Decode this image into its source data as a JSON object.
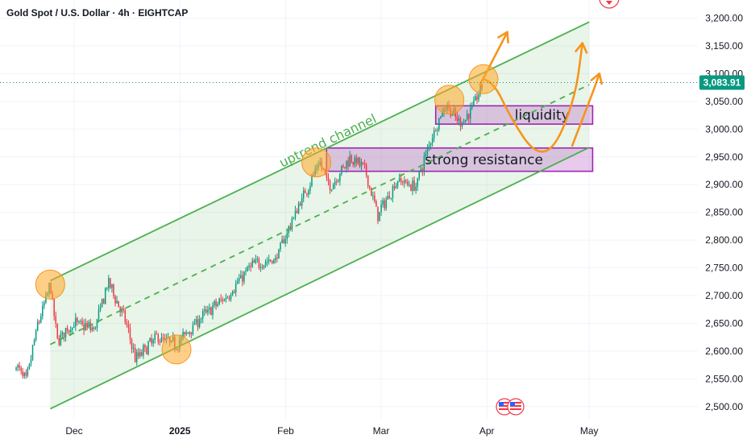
{
  "chart_data": {
    "type": "candlestick",
    "title": "Gold Spot / U.S. Dollar · 4h · EIGHTCAP",
    "ylim": [
      2480,
      3230
    ],
    "y_ticks": [
      "3,200.00",
      "3,150.00",
      "3,100.00",
      "3,050.00",
      "3,000.00",
      "2,950.00",
      "2,900.00",
      "2,850.00",
      "2,800.00",
      "2,750.00",
      "2,700.00",
      "2,650.00",
      "2,600.00",
      "2,550.00",
      "2,500.00"
    ],
    "y_tick_values": [
      3200,
      3150,
      3100,
      3050,
      3000,
      2950,
      2900,
      2850,
      2800,
      2750,
      2700,
      2650,
      2600,
      2550,
      2500
    ],
    "x_ticks": [
      {
        "label": "Dec",
        "date": "2024-12-01",
        "bold": false
      },
      {
        "label": "2025",
        "date": "2025-01-01",
        "bold": true
      },
      {
        "label": "Feb",
        "date": "2025-02-01",
        "bold": false
      },
      {
        "label": "Mar",
        "date": "2025-03-01",
        "bold": false
      },
      {
        "label": "Apr",
        "date": "2025-04-01",
        "bold": false
      },
      {
        "label": "May",
        "date": "2025-05-01",
        "bold": false
      }
    ],
    "current_price": {
      "label": "3,083.91",
      "value": 3083.91,
      "color": "#089981"
    },
    "price_path": [
      {
        "date": "2024-11-14",
        "price": 2575
      },
      {
        "date": "2024-11-17",
        "price": 2545
      },
      {
        "date": "2024-11-20",
        "price": 2640
      },
      {
        "date": "2024-11-24",
        "price": 2720
      },
      {
        "date": "2024-11-26",
        "price": 2620
      },
      {
        "date": "2024-12-01",
        "price": 2650
      },
      {
        "date": "2024-12-07",
        "price": 2640
      },
      {
        "date": "2024-12-11",
        "price": 2725
      },
      {
        "date": "2024-12-16",
        "price": 2655
      },
      {
        "date": "2024-12-19",
        "price": 2585
      },
      {
        "date": "2024-12-25",
        "price": 2625
      },
      {
        "date": "2024-12-31",
        "price": 2612
      },
      {
        "date": "2025-01-07",
        "price": 2660
      },
      {
        "date": "2025-01-15",
        "price": 2700
      },
      {
        "date": "2025-01-22",
        "price": 2755
      },
      {
        "date": "2025-01-29",
        "price": 2765
      },
      {
        "date": "2025-02-05",
        "price": 2865
      },
      {
        "date": "2025-02-11",
        "price": 2940
      },
      {
        "date": "2025-02-14",
        "price": 2895
      },
      {
        "date": "2025-02-20",
        "price": 2950
      },
      {
        "date": "2025-02-24",
        "price": 2930
      },
      {
        "date": "2025-02-28",
        "price": 2845
      },
      {
        "date": "2025-03-06",
        "price": 2910
      },
      {
        "date": "2025-03-11",
        "price": 2895
      },
      {
        "date": "2025-03-16",
        "price": 2990
      },
      {
        "date": "2025-03-20",
        "price": 3045
      },
      {
        "date": "2025-03-24",
        "price": 3010
      },
      {
        "date": "2025-03-27",
        "price": 3030
      },
      {
        "date": "2025-03-31",
        "price": 3083
      }
    ],
    "channel": {
      "label": "uptrend channel",
      "color": "#4caf50",
      "upper": [
        {
          "date": "2024-11-24",
          "price": 2727
        },
        {
          "date": "2025-05-01",
          "price": 3193
        }
      ],
      "lower": [
        {
          "date": "2024-11-24",
          "price": 2496
        },
        {
          "date": "2025-05-01",
          "price": 2967
        }
      ],
      "middle": [
        {
          "date": "2024-11-24",
          "price": 2612
        },
        {
          "date": "2025-05-01",
          "price": 3080
        }
      ]
    },
    "zones": [
      {
        "label": "liquidity",
        "from_date": "2025-03-17",
        "to_date": "2025-05-02",
        "top": 3042,
        "bottom": 3009
      },
      {
        "label": "strong resistance",
        "from_date": "2025-02-13",
        "to_date": "2025-05-02",
        "top": 2966,
        "bottom": 2924
      }
    ],
    "touch_points": [
      {
        "date": "2024-11-24",
        "price": 2720
      },
      {
        "date": "2024-12-31",
        "price": 2603
      },
      {
        "date": "2025-02-10",
        "price": 2940
      },
      {
        "date": "2025-03-21",
        "price": 3053
      },
      {
        "date": "2025-03-31",
        "price": 3090
      }
    ],
    "projection_color": "#f7941d",
    "projections": [
      [
        {
          "date": "2025-03-30",
          "price": 3080
        },
        {
          "date": "2025-04-07",
          "price": 3175
        }
      ],
      [
        {
          "date": "2025-03-31",
          "price": 3090
        },
        {
          "date": "2025-04-03",
          "price": 3085
        },
        {
          "date": "2025-04-08",
          "price": 3020
        },
        {
          "date": "2025-04-15",
          "price": 2955
        },
        {
          "date": "2025-04-21",
          "price": 2965
        },
        {
          "date": "2025-04-27",
          "price": 3060
        },
        {
          "date": "2025-04-29",
          "price": 3155
        }
      ],
      [
        {
          "date": "2025-04-26",
          "price": 2970
        },
        {
          "date": "2025-05-02",
          "price": 3065
        },
        {
          "date": "2025-05-04",
          "price": 3100
        }
      ]
    ]
  }
}
